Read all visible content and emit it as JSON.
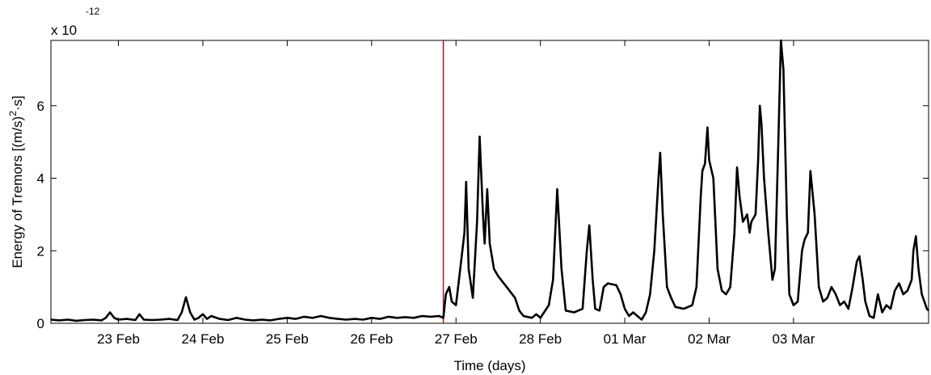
{
  "chart_data": {
    "type": "line",
    "title": "",
    "xlabel": "Time (days)",
    "ylabel": "Energy of Tremors [(m/s)",
    "ylabel_sup": "2",
    "ylabel_tail": "·s]",
    "y_multiplier_base": "x 10",
    "y_multiplier_exp": "-12",
    "x_unit": "days",
    "xlim": [
      0,
      10.4
    ],
    "ylim": [
      0,
      7.8
    ],
    "x_ticks": [
      {
        "value": 0.8,
        "label": "23 Feb"
      },
      {
        "value": 1.8,
        "label": "24 Feb"
      },
      {
        "value": 2.8,
        "label": "25 Feb"
      },
      {
        "value": 3.8,
        "label": "26 Feb"
      },
      {
        "value": 4.8,
        "label": "27 Feb"
      },
      {
        "value": 5.8,
        "label": "28 Feb"
      },
      {
        "value": 6.8,
        "label": "01 Mar"
      },
      {
        "value": 7.8,
        "label": "02 Mar"
      },
      {
        "value": 8.8,
        "label": "03 Mar"
      }
    ],
    "y_ticks": [
      {
        "value": 0,
        "label": "0"
      },
      {
        "value": 2,
        "label": "2"
      },
      {
        "value": 4,
        "label": "4"
      },
      {
        "value": 6,
        "label": "6"
      }
    ],
    "marker_line": {
      "x": 4.65,
      "color": "#e00000"
    },
    "grid": false,
    "series": [
      {
        "color": "#000000",
        "points": [
          [
            0.0,
            0.1
          ],
          [
            0.1,
            0.08
          ],
          [
            0.2,
            0.1
          ],
          [
            0.3,
            0.07
          ],
          [
            0.4,
            0.09
          ],
          [
            0.5,
            0.1
          ],
          [
            0.6,
            0.08
          ],
          [
            0.65,
            0.15
          ],
          [
            0.7,
            0.3
          ],
          [
            0.75,
            0.15
          ],
          [
            0.8,
            0.1
          ],
          [
            0.9,
            0.12
          ],
          [
            1.0,
            0.09
          ],
          [
            1.05,
            0.25
          ],
          [
            1.1,
            0.1
          ],
          [
            1.2,
            0.09
          ],
          [
            1.3,
            0.1
          ],
          [
            1.4,
            0.12
          ],
          [
            1.5,
            0.09
          ],
          [
            1.55,
            0.3
          ],
          [
            1.6,
            0.72
          ],
          [
            1.65,
            0.3
          ],
          [
            1.7,
            0.1
          ],
          [
            1.75,
            0.15
          ],
          [
            1.8,
            0.25
          ],
          [
            1.85,
            0.12
          ],
          [
            1.9,
            0.2
          ],
          [
            2.0,
            0.12
          ],
          [
            2.1,
            0.09
          ],
          [
            2.2,
            0.15
          ],
          [
            2.3,
            0.1
          ],
          [
            2.4,
            0.08
          ],
          [
            2.5,
            0.1
          ],
          [
            2.6,
            0.08
          ],
          [
            2.7,
            0.12
          ],
          [
            2.8,
            0.15
          ],
          [
            2.9,
            0.12
          ],
          [
            3.0,
            0.18
          ],
          [
            3.1,
            0.15
          ],
          [
            3.2,
            0.2
          ],
          [
            3.3,
            0.15
          ],
          [
            3.4,
            0.12
          ],
          [
            3.5,
            0.1
          ],
          [
            3.6,
            0.12
          ],
          [
            3.7,
            0.1
          ],
          [
            3.8,
            0.15
          ],
          [
            3.9,
            0.12
          ],
          [
            4.0,
            0.18
          ],
          [
            4.1,
            0.15
          ],
          [
            4.2,
            0.17
          ],
          [
            4.3,
            0.15
          ],
          [
            4.4,
            0.2
          ],
          [
            4.5,
            0.18
          ],
          [
            4.6,
            0.2
          ],
          [
            4.65,
            0.15
          ],
          [
            4.68,
            0.8
          ],
          [
            4.72,
            1.0
          ],
          [
            4.75,
            0.6
          ],
          [
            4.8,
            0.5
          ],
          [
            4.85,
            1.5
          ],
          [
            4.9,
            2.5
          ],
          [
            4.92,
            3.9
          ],
          [
            4.95,
            1.5
          ],
          [
            5.0,
            0.7
          ],
          [
            5.05,
            2.8
          ],
          [
            5.08,
            5.15
          ],
          [
            5.12,
            3.0
          ],
          [
            5.14,
            2.2
          ],
          [
            5.17,
            3.7
          ],
          [
            5.2,
            2.2
          ],
          [
            5.25,
            1.5
          ],
          [
            5.3,
            1.3
          ],
          [
            5.4,
            1.0
          ],
          [
            5.5,
            0.7
          ],
          [
            5.55,
            0.35
          ],
          [
            5.6,
            0.2
          ],
          [
            5.7,
            0.15
          ],
          [
            5.75,
            0.25
          ],
          [
            5.8,
            0.15
          ],
          [
            5.9,
            0.5
          ],
          [
            5.95,
            1.2
          ],
          [
            6.0,
            3.7
          ],
          [
            6.05,
            1.5
          ],
          [
            6.1,
            0.35
          ],
          [
            6.2,
            0.3
          ],
          [
            6.3,
            0.4
          ],
          [
            6.35,
            2.0
          ],
          [
            6.38,
            2.7
          ],
          [
            6.42,
            1.2
          ],
          [
            6.45,
            0.4
          ],
          [
            6.5,
            0.35
          ],
          [
            6.55,
            1.0
          ],
          [
            6.6,
            1.1
          ],
          [
            6.7,
            1.05
          ],
          [
            6.75,
            0.8
          ],
          [
            6.8,
            0.4
          ],
          [
            6.85,
            0.2
          ],
          [
            6.9,
            0.3
          ],
          [
            6.95,
            0.2
          ],
          [
            7.0,
            0.1
          ],
          [
            7.05,
            0.3
          ],
          [
            7.1,
            0.8
          ],
          [
            7.15,
            2.0
          ],
          [
            7.2,
            4.0
          ],
          [
            7.22,
            4.7
          ],
          [
            7.25,
            3.0
          ],
          [
            7.3,
            1.0
          ],
          [
            7.35,
            0.7
          ],
          [
            7.4,
            0.45
          ],
          [
            7.5,
            0.4
          ],
          [
            7.6,
            0.5
          ],
          [
            7.65,
            1.0
          ],
          [
            7.7,
            3.5
          ],
          [
            7.72,
            4.2
          ],
          [
            7.75,
            4.4
          ],
          [
            7.78,
            5.4
          ],
          [
            7.8,
            4.5
          ],
          [
            7.85,
            4.0
          ],
          [
            7.9,
            1.5
          ],
          [
            7.95,
            0.9
          ],
          [
            8.0,
            0.8
          ],
          [
            8.05,
            1.0
          ],
          [
            8.1,
            2.5
          ],
          [
            8.13,
            4.3
          ],
          [
            8.16,
            3.5
          ],
          [
            8.2,
            2.8
          ],
          [
            8.25,
            3.0
          ],
          [
            8.28,
            2.5
          ],
          [
            8.3,
            2.8
          ],
          [
            8.35,
            3.0
          ],
          [
            8.38,
            4.5
          ],
          [
            8.4,
            6.0
          ],
          [
            8.42,
            5.5
          ],
          [
            8.45,
            4.0
          ],
          [
            8.5,
            2.5
          ],
          [
            8.55,
            1.2
          ],
          [
            8.58,
            1.5
          ],
          [
            8.62,
            5.0
          ],
          [
            8.65,
            7.8
          ],
          [
            8.68,
            7.0
          ],
          [
            8.72,
            3.0
          ],
          [
            8.75,
            0.8
          ],
          [
            8.8,
            0.5
          ],
          [
            8.85,
            0.6
          ],
          [
            8.9,
            2.0
          ],
          [
            8.93,
            2.3
          ],
          [
            8.97,
            2.5
          ],
          [
            9.0,
            4.2
          ],
          [
            9.05,
            3.0
          ],
          [
            9.1,
            1.0
          ],
          [
            9.15,
            0.6
          ],
          [
            9.2,
            0.7
          ],
          [
            9.25,
            1.0
          ],
          [
            9.3,
            0.8
          ],
          [
            9.35,
            0.5
          ],
          [
            9.4,
            0.6
          ],
          [
            9.45,
            0.4
          ],
          [
            9.5,
            1.0
          ],
          [
            9.55,
            1.7
          ],
          [
            9.58,
            1.85
          ],
          [
            9.62,
            1.2
          ],
          [
            9.65,
            0.6
          ],
          [
            9.7,
            0.2
          ],
          [
            9.75,
            0.15
          ],
          [
            9.8,
            0.8
          ],
          [
            9.85,
            0.3
          ],
          [
            9.9,
            0.5
          ],
          [
            9.95,
            0.4
          ],
          [
            10.0,
            0.9
          ],
          [
            10.05,
            1.1
          ],
          [
            10.1,
            0.8
          ],
          [
            10.15,
            0.9
          ],
          [
            10.2,
            1.2
          ],
          [
            10.22,
            2.0
          ],
          [
            10.25,
            2.4
          ],
          [
            10.28,
            1.5
          ],
          [
            10.32,
            0.8
          ],
          [
            10.38,
            0.4
          ],
          [
            10.4,
            0.35
          ]
        ]
      }
    ]
  }
}
